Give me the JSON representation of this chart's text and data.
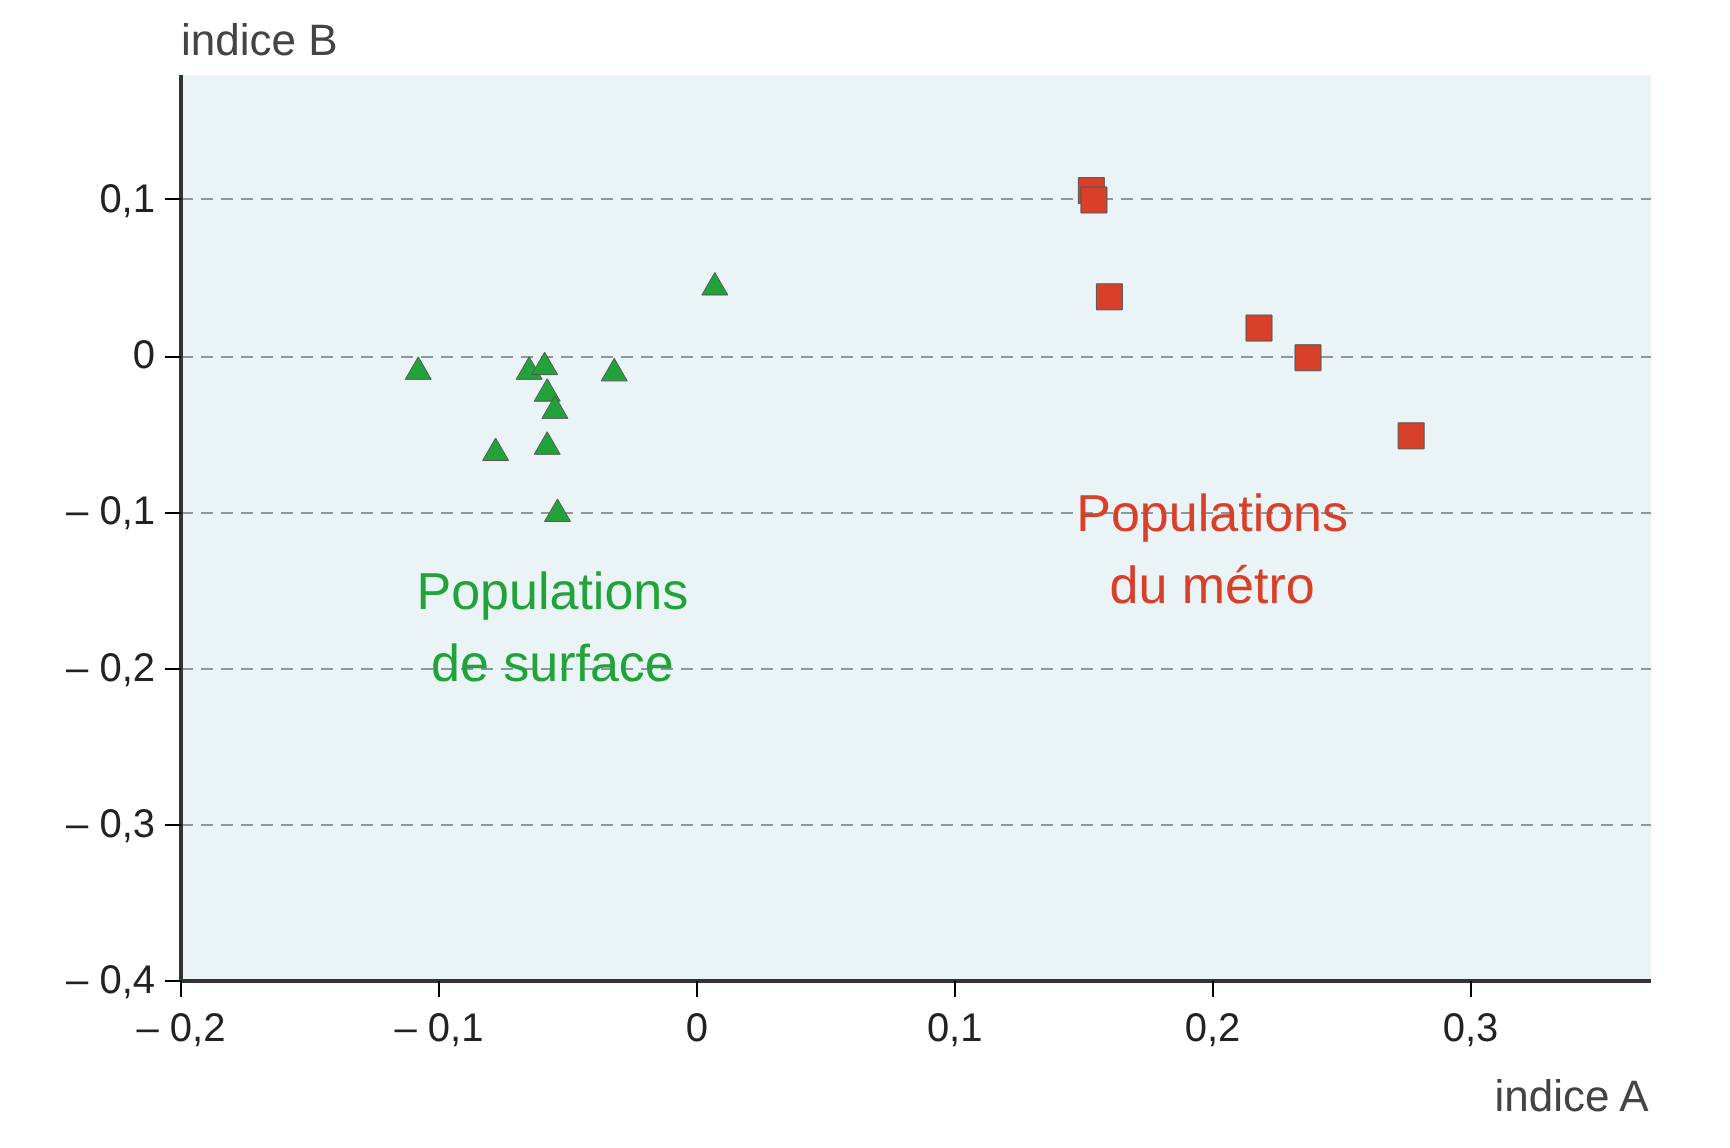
{
  "chart_data": {
    "type": "scatter",
    "xlabel": "indice A",
    "ylabel": "indice B",
    "xlim": [
      -0.2,
      0.37
    ],
    "ylim": [
      -0.4,
      0.18
    ],
    "xticks": [
      {
        "value": -0.2,
        "label": "– 0,2"
      },
      {
        "value": -0.1,
        "label": "– 0,1"
      },
      {
        "value": 0,
        "label": "0"
      },
      {
        "value": 0.1,
        "label": "0,1"
      },
      {
        "value": 0.2,
        "label": "0,2"
      },
      {
        "value": 0.3,
        "label": "0,3"
      }
    ],
    "yticks": [
      {
        "value": -0.4,
        "label": "– 0,4"
      },
      {
        "value": -0.3,
        "label": "– 0,3"
      },
      {
        "value": -0.2,
        "label": "– 0,2"
      },
      {
        "value": -0.1,
        "label": "– 0,1"
      },
      {
        "value": 0,
        "label": "0"
      },
      {
        "value": 0.1,
        "label": "0,1"
      }
    ],
    "grid": "y",
    "series": [
      {
        "name": "Populations de surface",
        "color": "#22a33a",
        "marker": "triangle",
        "x": [
          -0.108,
          -0.078,
          -0.065,
          -0.059,
          -0.058,
          -0.055,
          -0.058,
          -0.054,
          -0.032,
          0.007
        ],
        "values": [
          -0.01,
          -0.062,
          -0.01,
          -0.007,
          -0.024,
          -0.035,
          -0.058,
          -0.101,
          -0.011,
          0.044
        ]
      },
      {
        "name": "Populations du métro",
        "color": "#d9402a",
        "marker": "square",
        "x": [
          0.153,
          0.154,
          0.16,
          0.218,
          0.237,
          0.277
        ],
        "values": [
          0.106,
          0.1,
          0.038,
          0.018,
          -0.001,
          -0.051
        ]
      }
    ]
  }
}
